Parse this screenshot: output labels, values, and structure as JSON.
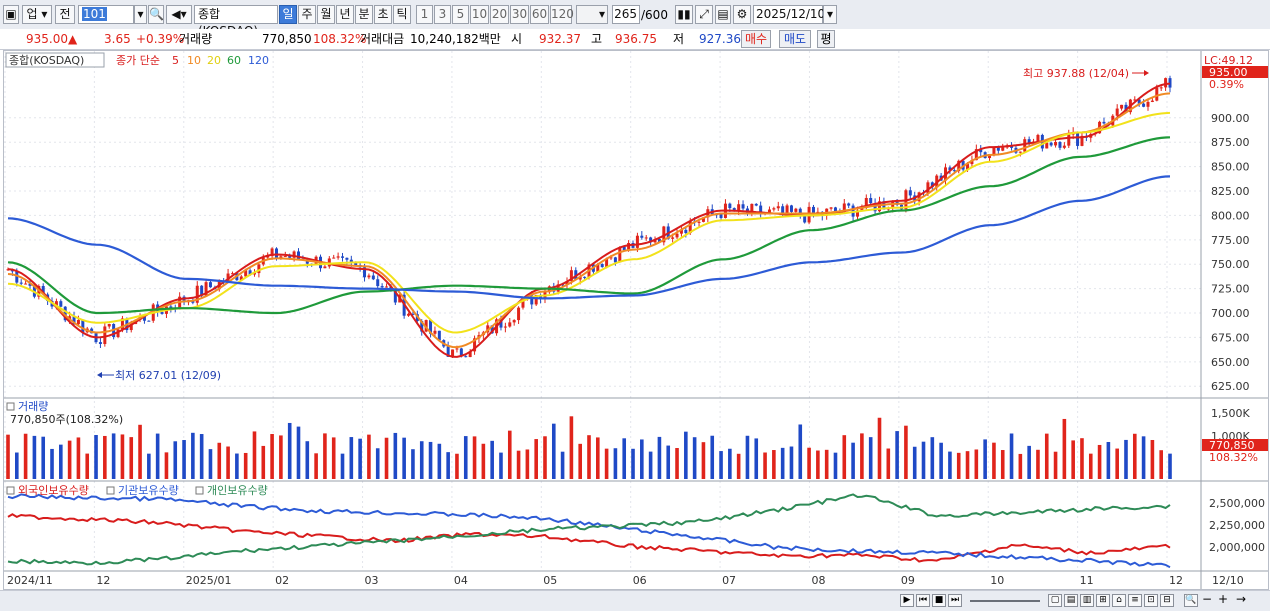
{
  "toolbar": {
    "market_select": "업",
    "prev_label": "전",
    "code_value": "101",
    "index_name": "종합(KOSDAQ)",
    "period_tabs": [
      "일",
      "주",
      "월",
      "년",
      "분",
      "초",
      "틱"
    ],
    "active_period": "일",
    "interval_buttons": [
      "1",
      "3",
      "5",
      "10",
      "20",
      "30",
      "60",
      "120"
    ],
    "count_value": "265",
    "count_max": "/600",
    "date_value": "2025/12/10"
  },
  "pricebar": {
    "price": "935.00",
    "change_arrow": "▲",
    "change": "3.65",
    "change_pct": "+0.39%",
    "volume_label": "거래량",
    "volume": "770,850",
    "volume_ratio": "108.32%",
    "amount_label": "거래대금",
    "amount": "10,240,182백만",
    "open_label": "시",
    "open": "932.37",
    "high_label": "고",
    "high": "936.75",
    "low_label": "저",
    "low": "927.36",
    "buy_label": "매수",
    "sell_label": "매도",
    "eval_label": "평"
  },
  "price_panel": {
    "series_label": "종합(KOSDAQ)",
    "ma_label": "종가 단순",
    "ma_periods": [
      "5",
      "10",
      "20",
      "60",
      "120"
    ],
    "ma_colors": [
      "#d81c1c",
      "#f08a24",
      "#f2e21b",
      "#1f9a3a",
      "#2d5bd6"
    ],
    "high_annotation": "최고 937.88 (12/04)",
    "low_annotation": "최저 627.01 (12/09)",
    "lc_label": "LC:49.12",
    "last_price_badge": "935.00",
    "last_pct_label": "0.39%",
    "y_ticks": [
      "900.00",
      "875.00",
      "850.00",
      "825.00",
      "800.00",
      "775.00",
      "750.00",
      "725.00",
      "700.00",
      "675.00",
      "650.00",
      "625.00"
    ]
  },
  "volume_panel": {
    "title": "거래량",
    "subtitle": "770,850주(108.32%)",
    "y_ticks": [
      "1,500K",
      "1,000K"
    ],
    "last_badge": "770,850",
    "last_pct": "108.32%"
  },
  "holdings_panel": {
    "legend": [
      "외국인보유수량",
      "기관보유수량",
      "개인보유수량"
    ],
    "legend_colors": [
      "#d81c1c",
      "#2d5bd6",
      "#2e8b57"
    ],
    "y_ticks": [
      "2,500,000",
      "2,250,000",
      "2,000,000"
    ]
  },
  "x_axis": {
    "labels": [
      "2024/11",
      "12",
      "2025/01",
      "02",
      "03",
      "04",
      "05",
      "06",
      "07",
      "08",
      "09",
      "10",
      "11",
      "12"
    ],
    "right_label": "12/10"
  },
  "chart_data": {
    "type": "candlestick",
    "ylim": [
      615,
      950
    ],
    "monthly_closes_points": [
      {
        "x": "2024/11",
        "y": 745
      },
      {
        "x": "12",
        "y": 675
      },
      {
        "x": "2025/01",
        "y": 715
      },
      {
        "x": "02",
        "y": 760
      },
      {
        "x": "03",
        "y": 745
      },
      {
        "x": "04",
        "y": 655
      },
      {
        "x": "05",
        "y": 725
      },
      {
        "x": "06",
        "y": 770
      },
      {
        "x": "07",
        "y": 805
      },
      {
        "x": "08",
        "y": 800
      },
      {
        "x": "09",
        "y": 815
      },
      {
        "x": "10",
        "y": 870
      },
      {
        "x": "11",
        "y": 880
      },
      {
        "x": "12",
        "y": 935
      }
    ],
    "series": [
      {
        "name": "5",
        "values": [
          745,
          675,
          715,
          760,
          745,
          655,
          725,
          770,
          805,
          800,
          815,
          870,
          880,
          935
        ]
      },
      {
        "name": "10",
        "values": [
          740,
          680,
          712,
          756,
          748,
          665,
          722,
          765,
          802,
          802,
          812,
          862,
          885,
          925
        ]
      },
      {
        "name": "20",
        "values": [
          730,
          690,
          705,
          748,
          752,
          680,
          718,
          755,
          795,
          800,
          808,
          855,
          885,
          905
        ]
      },
      {
        "name": "60",
        "values": [
          752,
          700,
          705,
          700,
          722,
          728,
          725,
          720,
          755,
          785,
          805,
          830,
          860,
          880
        ]
      },
      {
        "name": "120",
        "values": [
          797,
          770,
          735,
          728,
          725,
          722,
          715,
          718,
          735,
          752,
          762,
          790,
          815,
          840
        ]
      }
    ],
    "high": 937.88,
    "low": 627.01
  }
}
